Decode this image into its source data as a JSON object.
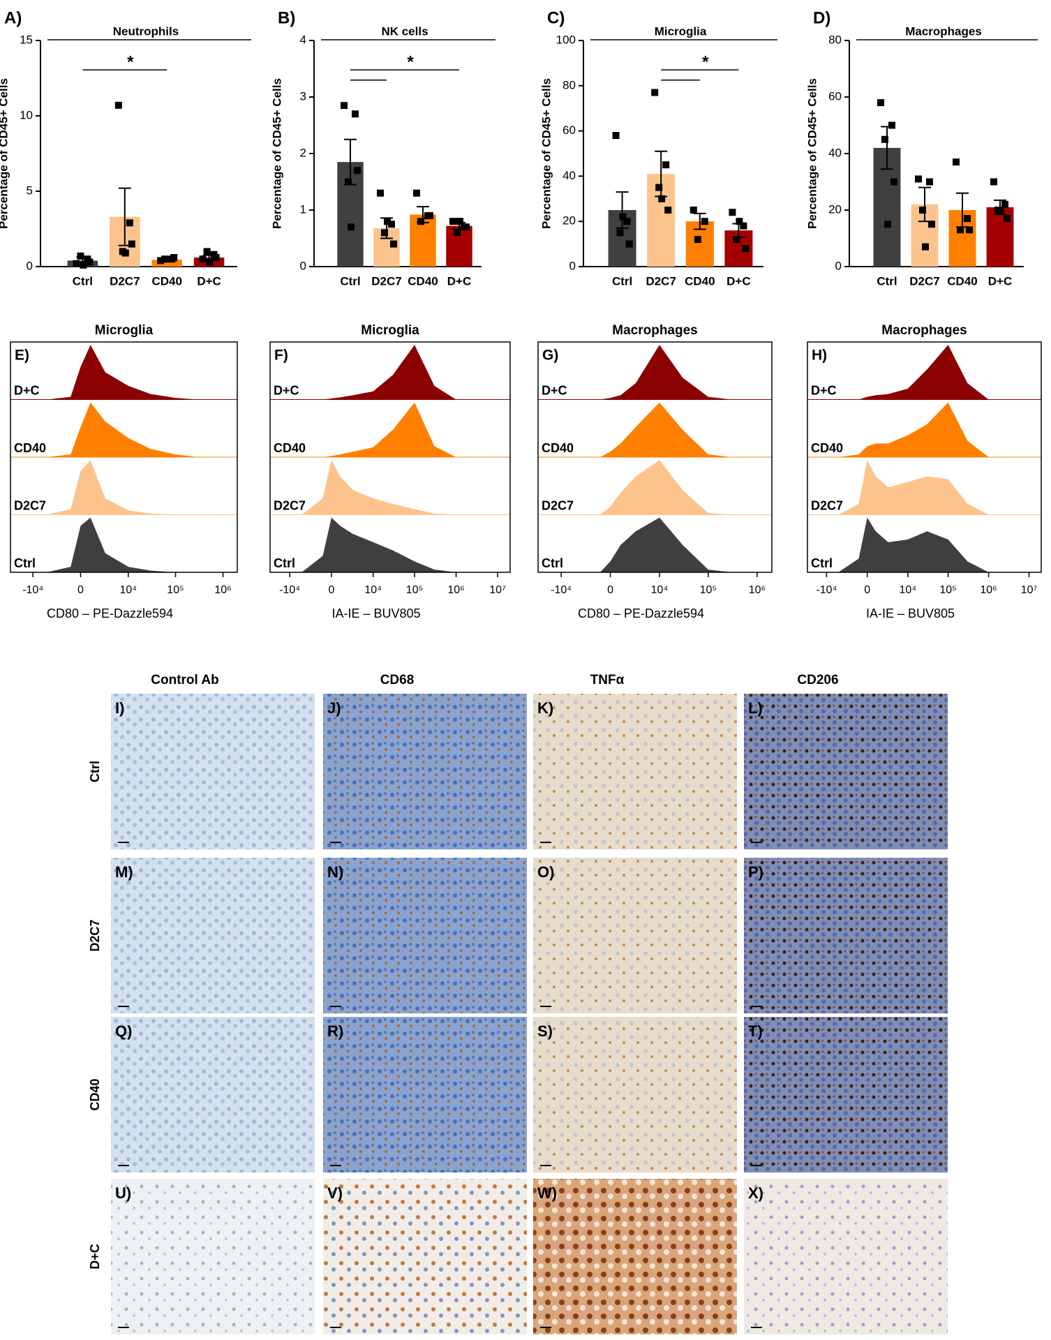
{
  "chart_data": [
    {
      "type": "bar",
      "label": "A)",
      "title": "Neutrophils",
      "ylabel": "Percentage of CD45+ Cells",
      "categories": [
        "Ctrl",
        "D2C7",
        "CD40",
        "D+C"
      ],
      "colors": [
        "#404040",
        "#fcc48c",
        "#ff8000",
        "#a50000"
      ],
      "values": [
        0.4,
        3.3,
        0.45,
        0.6
      ],
      "errors": [
        0.25,
        1.9,
        0.1,
        0.15
      ],
      "points": [
        [
          0.2,
          0.5,
          0.7,
          0.3,
          0.1
        ],
        [
          10.7,
          2.9,
          1.0,
          1.5,
          0.9
        ],
        [
          0.4,
          0.5,
          0.5,
          0.6
        ],
        [
          0.5,
          0.8,
          1.0,
          0.6,
          0.3
        ]
      ],
      "ylim": [
        0,
        15
      ],
      "yticks": [
        0,
        5,
        10,
        15
      ],
      "comparisons": [
        [
          "Ctrl",
          "CD40"
        ]
      ],
      "annotation": "*"
    },
    {
      "type": "bar",
      "label": "B)",
      "title": "NK cells",
      "ylabel": "Percentage of CD45+ Cells",
      "categories": [
        "Ctrl",
        "D2C7",
        "CD40",
        "D+C"
      ],
      "colors": [
        "#404040",
        "#fcc48c",
        "#ff8000",
        "#a50000"
      ],
      "values": [
        1.85,
        0.68,
        0.92,
        0.72
      ],
      "errors": [
        0.4,
        0.18,
        0.14,
        0.06
      ],
      "points": [
        [
          2.85,
          2.7,
          1.5,
          1.7,
          0.7
        ],
        [
          1.3,
          0.75,
          0.6,
          0.4,
          0.8
        ],
        [
          1.3,
          0.9,
          0.8,
          0.9
        ],
        [
          0.8,
          0.7,
          0.6,
          0.7,
          0.8
        ]
      ],
      "ylim": [
        0,
        4
      ],
      "yticks": [
        0,
        1,
        2,
        3,
        4
      ],
      "comparisons": [
        [
          "Ctrl",
          "D+C"
        ],
        [
          "Ctrl",
          "D2C7"
        ]
      ],
      "annotation": "*"
    },
    {
      "type": "bar",
      "label": "C)",
      "title": "Microglia",
      "ylabel": "Percentage of CD45+ Cells",
      "categories": [
        "Ctrl",
        "D2C7",
        "CD40",
        "D+C"
      ],
      "colors": [
        "#404040",
        "#fcc48c",
        "#ff8000",
        "#a50000"
      ],
      "values": [
        25,
        41,
        20,
        16
      ],
      "errors": [
        8,
        10,
        3.5,
        3
      ],
      "points": [
        [
          58,
          20,
          15,
          10,
          22
        ],
        [
          77,
          45,
          35,
          25,
          30
        ],
        [
          25,
          20,
          12
        ],
        [
          24,
          18,
          12,
          8,
          20
        ]
      ],
      "ylim": [
        0,
        100
      ],
      "yticks": [
        0,
        20,
        40,
        60,
        80,
        100
      ],
      "comparisons": [
        [
          "D2C7",
          "D+C"
        ],
        [
          "D2C7",
          "CD40"
        ]
      ],
      "annotation": "*"
    },
    {
      "type": "bar",
      "label": "D)",
      "title": "Macrophages",
      "ylabel": "Percentage of CD45+ Cells",
      "categories": [
        "Ctrl",
        "D2C7",
        "CD40",
        "D+C"
      ],
      "colors": [
        "#404040",
        "#fcc48c",
        "#ff8000",
        "#a50000"
      ],
      "values": [
        42,
        22,
        20,
        21
      ],
      "errors": [
        7.5,
        6,
        6,
        2.5
      ],
      "points": [
        [
          58,
          50,
          45,
          30,
          15
        ],
        [
          31,
          30,
          20,
          15,
          7
        ],
        [
          37,
          17,
          13,
          13
        ],
        [
          30,
          22,
          20,
          17,
          20
        ]
      ],
      "ylim": [
        0,
        80
      ],
      "yticks": [
        0,
        20,
        40,
        60,
        80
      ]
    },
    {
      "type": "histogram",
      "label": "E)",
      "title": "Microglia",
      "xlabel": "CD80 – PE-Dazzle594",
      "xscale": "biexponential",
      "xlim": [
        -30000,
        2000000
      ],
      "xticks": [
        {
          "value": -10000,
          "label": "-10⁴"
        },
        0,
        {
          "value": 10000,
          "label": "10⁴"
        },
        {
          "value": 100000,
          "label": "10⁵"
        },
        {
          "value": 1000000,
          "label": "10⁶"
        }
      ],
      "x": [
        -5000,
        -1000,
        0,
        1000,
        3000,
        10000,
        30000,
        100000,
        300000,
        1000000
      ],
      "series": [
        {
          "name": "D+C",
          "color": "#8b0000",
          "values": [
            0,
            5,
            60,
            100,
            50,
            25,
            10,
            3,
            0,
            0
          ]
        },
        {
          "name": "CD40",
          "color": "#ff8000",
          "values": [
            0,
            5,
            55,
            100,
            65,
            35,
            15,
            5,
            0,
            0
          ]
        },
        {
          "name": "D2C7",
          "color": "#fcc48c",
          "values": [
            0,
            10,
            80,
            100,
            30,
            8,
            2,
            0,
            0,
            0
          ]
        },
        {
          "name": "Ctrl",
          "color": "#3f3f3f",
          "values": [
            0,
            10,
            85,
            100,
            35,
            10,
            3,
            0,
            0,
            0
          ]
        }
      ]
    },
    {
      "type": "histogram",
      "label": "F)",
      "title": "Microglia",
      "xlabel": "IA-IE – BUV805",
      "xscale": "biexponential",
      "xlim": [
        -30000,
        20000000
      ],
      "xticks": [
        {
          "value": -10000,
          "label": "-10⁴"
        },
        0,
        {
          "value": 10000,
          "label": "10⁴"
        },
        {
          "value": 100000,
          "label": "10⁵"
        },
        {
          "value": 1000000,
          "label": "10⁶"
        },
        {
          "value": 10000000,
          "label": "10⁷"
        }
      ],
      "x": [
        -5000,
        -1000,
        0,
        1000,
        3000,
        10000,
        30000,
        100000,
        300000,
        1000000
      ],
      "series": [
        {
          "name": "D+C",
          "color": "#8b0000",
          "values": [
            0,
            0,
            2,
            4,
            8,
            15,
            45,
            100,
            25,
            0
          ]
        },
        {
          "name": "CD40",
          "color": "#ff8000",
          "values": [
            0,
            0,
            2,
            5,
            10,
            18,
            50,
            100,
            20,
            0
          ]
        },
        {
          "name": "D2C7",
          "color": "#fcc48c",
          "values": [
            0,
            30,
            100,
            70,
            45,
            30,
            20,
            10,
            2,
            0
          ]
        },
        {
          "name": "Ctrl",
          "color": "#3f3f3f",
          "values": [
            0,
            30,
            100,
            85,
            70,
            55,
            40,
            20,
            5,
            0
          ]
        }
      ]
    },
    {
      "type": "histogram",
      "label": "G)",
      "title": "Macrophages",
      "xlabel": "CD80 – PE-Dazzle594",
      "xscale": "biexponential",
      "xlim": [
        -30000,
        2000000
      ],
      "xticks": [
        {
          "value": -10000,
          "label": "-10⁴"
        },
        0,
        {
          "value": 10000,
          "label": "10⁴"
        },
        {
          "value": 100000,
          "label": "10⁵"
        },
        {
          "value": 1000000,
          "label": "10⁶"
        }
      ],
      "x": [
        -5000,
        -1000,
        0,
        1000,
        3000,
        10000,
        30000,
        100000,
        300000,
        1000000
      ],
      "series": [
        {
          "name": "D+C",
          "color": "#8b0000",
          "values": [
            0,
            0,
            3,
            8,
            30,
            100,
            40,
            5,
            0,
            0
          ]
        },
        {
          "name": "CD40",
          "color": "#ff8000",
          "values": [
            0,
            0,
            10,
            25,
            55,
            100,
            50,
            5,
            0,
            0
          ]
        },
        {
          "name": "D2C7",
          "color": "#fcc48c",
          "values": [
            0,
            0,
            15,
            40,
            70,
            100,
            45,
            3,
            0,
            0
          ]
        },
        {
          "name": "Ctrl",
          "color": "#3f3f3f",
          "values": [
            0,
            0,
            20,
            50,
            75,
            100,
            50,
            5,
            0,
            0
          ]
        }
      ]
    },
    {
      "type": "histogram",
      "label": "H)",
      "title": "Macrophages",
      "xlabel": "IA-IE – BUV805",
      "xscale": "biexponential",
      "xlim": [
        -30000,
        20000000
      ],
      "xticks": [
        {
          "value": -10000,
          "label": "-10⁴"
        },
        0,
        {
          "value": 10000,
          "label": "10⁴"
        },
        {
          "value": 100000,
          "label": "10⁵"
        },
        {
          "value": 1000000,
          "label": "10⁶"
        },
        {
          "value": 10000000,
          "label": "10⁷"
        }
      ],
      "x": [
        -5000,
        -1000,
        0,
        1000,
        3000,
        10000,
        30000,
        100000,
        300000,
        1000000
      ],
      "series": [
        {
          "name": "D+C",
          "color": "#8b0000",
          "values": [
            0,
            0,
            5,
            8,
            10,
            20,
            55,
            100,
            30,
            0
          ]
        },
        {
          "name": "CD40",
          "color": "#ff8000",
          "values": [
            0,
            5,
            20,
            25,
            25,
            40,
            60,
            100,
            30,
            0
          ]
        },
        {
          "name": "D2C7",
          "color": "#fcc48c",
          "values": [
            0,
            20,
            100,
            70,
            50,
            60,
            70,
            65,
            20,
            0
          ]
        },
        {
          "name": "Ctrl",
          "color": "#3f3f3f",
          "values": [
            0,
            25,
            100,
            75,
            55,
            60,
            75,
            60,
            20,
            0
          ]
        }
      ]
    }
  ],
  "ihc": {
    "columns": [
      "Control Ab",
      "CD68",
      "TNFα",
      "CD206"
    ],
    "rows": [
      "Ctrl",
      "D2C7",
      "CD40",
      "D+C"
    ],
    "panels": [
      [
        "I)",
        "J)",
        "K)",
        "L)"
      ],
      [
        "M)",
        "N)",
        "O)",
        "P)"
      ],
      [
        "Q)",
        "R)",
        "S)",
        "T)"
      ],
      [
        "U)",
        "V)",
        "W)",
        "X)"
      ]
    ]
  }
}
